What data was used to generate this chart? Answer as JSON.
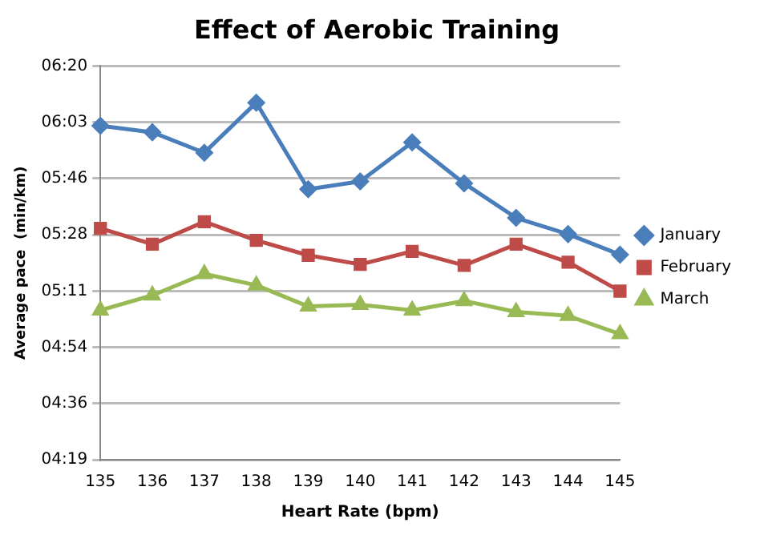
{
  "chart_data": {
    "type": "line",
    "title": "Effect of Aerobic Training",
    "xlabel": "Heart Rate (bpm)",
    "ylabel": "Average pace  (min/km)",
    "categories": [
      "135",
      "136",
      "137",
      "138",
      "139",
      "140",
      "141",
      "142",
      "143",
      "144",
      "145"
    ],
    "series": [
      {
        "name": "January",
        "color": "#4a7ebb",
        "marker": "diamond",
        "values": [
          361.8,
          359.8,
          353.5,
          368.9,
          342.3,
          344.7,
          356.7,
          344.1,
          333.5,
          328.5,
          322.2
        ]
      },
      {
        "name": "February",
        "color": "#be4b48",
        "marker": "square",
        "values": [
          330.3,
          325.4,
          332.3,
          326.6,
          322.0,
          319.2,
          323.2,
          318.9,
          325.4,
          319.9,
          311.0
        ]
      },
      {
        "name": "March",
        "color": "#98b954",
        "marker": "triangle",
        "values": [
          305.1,
          309.7,
          316.3,
          312.8,
          306.3,
          306.8,
          305.1,
          308.0,
          304.6,
          303.4,
          297.8
        ]
      }
    ],
    "ylim": [
      259.2,
      380.16
    ],
    "yticks": [
      {
        "value": 259.2,
        "label": "04:19"
      },
      {
        "value": 276.48,
        "label": "04:36"
      },
      {
        "value": 293.76,
        "label": "04:54"
      },
      {
        "value": 311.04,
        "label": "05:11"
      },
      {
        "value": 328.32,
        "label": "05:28"
      },
      {
        "value": 345.6,
        "label": "05:46"
      },
      {
        "value": 362.88,
        "label": "06:03"
      },
      {
        "value": 380.16,
        "label": "06:20"
      }
    ],
    "grid": "y",
    "legend": "right",
    "line_style": "solid"
  }
}
